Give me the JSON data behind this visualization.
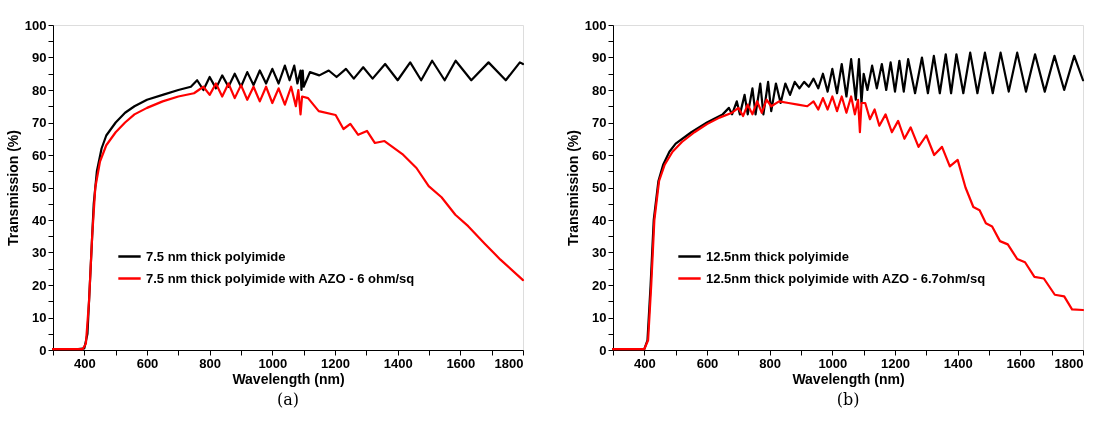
{
  "chart_data": [
    {
      "type": "line",
      "xlabel": "Wavelength (nm)",
      "ylabel": "Transmission (%)",
      "annotations": [
        "(a)"
      ],
      "legend": "bottom left",
      "grid": false,
      "line_style": "solid",
      "xlim": [
        300,
        1800
      ],
      "xticks": [
        {
          "value": 300,
          "label": null
        },
        400,
        {
          "value": 500,
          "label": null
        },
        600,
        {
          "value": 700,
          "label": null
        },
        800,
        {
          "value": 900,
          "label": null
        },
        1000,
        {
          "value": 1100,
          "label": null
        },
        1200,
        {
          "value": 1300,
          "label": null
        },
        1400,
        {
          "value": 1500,
          "label": null
        },
        1600,
        {
          "value": 1700,
          "label": null
        },
        1800
      ],
      "ylim": [
        0,
        100
      ],
      "yticks": [
        0,
        {
          "value": 5,
          "label": null
        },
        10,
        {
          "value": 15,
          "label": null
        },
        20,
        {
          "value": 25,
          "label": null
        },
        30,
        {
          "value": 35,
          "label": null
        },
        40,
        {
          "value": 45,
          "label": null
        },
        50,
        {
          "value": 55,
          "label": null
        },
        60,
        {
          "value": 65,
          "label": null
        },
        70,
        {
          "value": 75,
          "label": null
        },
        80,
        {
          "value": 85,
          "label": null
        },
        90,
        {
          "value": 95,
          "label": null
        },
        100
      ],
      "series": [
        {
          "name": "7.5 nm thick polyimide",
          "color": "#000000",
          "x": [
            300,
            380,
            400,
            410,
            420,
            430,
            440,
            455,
            470,
            500,
            530,
            560,
            600,
            650,
            700,
            740,
            760,
            780,
            800,
            820,
            840,
            860,
            880,
            900,
            920,
            940,
            960,
            980,
            1000,
            1020,
            1040,
            1055,
            1070,
            1080,
            1090,
            1093,
            1097,
            1100,
            1120,
            1150,
            1180,
            1205,
            1235,
            1260,
            1290,
            1320,
            1360,
            1400,
            1440,
            1475,
            1510,
            1550,
            1585,
            1635,
            1690,
            1745,
            1790,
            1800
          ],
          "values": [
            0.3,
            0.3,
            0.5,
            5,
            25,
            45,
            55,
            62,
            66,
            70,
            73,
            75,
            77,
            78.5,
            80,
            81,
            83,
            80,
            84,
            80.5,
            84.5,
            81,
            85,
            81,
            85.5,
            81.5,
            86,
            82,
            86.5,
            82,
            87.5,
            83,
            87.5,
            82,
            86,
            80,
            86,
            81,
            85.5,
            84.5,
            86,
            84,
            86.5,
            83.5,
            87,
            83.5,
            88,
            83,
            88.5,
            83,
            89,
            83,
            89,
            83,
            88.5,
            83,
            88.5,
            88
          ]
        },
        {
          "name": "7.5 nm thick polyimide with AZO - 6 ohm/sq",
          "color": "#ff0000",
          "x": [
            300,
            395,
            405,
            415,
            425,
            435,
            450,
            470,
            500,
            530,
            560,
            600,
            650,
            700,
            750,
            780,
            800,
            820,
            840,
            860,
            880,
            900,
            920,
            940,
            960,
            980,
            1000,
            1020,
            1040,
            1060,
            1075,
            1083,
            1090,
            1095,
            1114,
            1148,
            1202,
            1227,
            1249,
            1274,
            1302,
            1327,
            1358,
            1415,
            1460,
            1499,
            1540,
            1584,
            1625,
            1678,
            1728,
            1800
          ],
          "values": [
            0.3,
            0.3,
            2,
            15,
            35,
            50,
            58,
            63,
            67,
            70,
            72.5,
            74.5,
            76.5,
            78,
            79,
            81,
            78.5,
            82,
            78,
            82,
            77.5,
            81.5,
            77,
            81,
            76.5,
            81,
            76,
            80.5,
            75.5,
            81,
            75,
            80,
            72.5,
            78,
            77.5,
            73.5,
            72.3,
            68,
            69.6,
            66.2,
            67.4,
            63.7,
            64.3,
            60.3,
            56,
            50.4,
            47,
            41.6,
            38.1,
            32.7,
            27.8,
            21.5
          ]
        }
      ]
    },
    {
      "type": "line",
      "xlabel": "Wavelength (nm)",
      "ylabel": "Transmission (%)",
      "annotations": [
        "(b)"
      ],
      "legend": "bottom left",
      "grid": false,
      "line_style": "solid",
      "xlim": [
        300,
        1800
      ],
      "xticks": [
        {
          "value": 300,
          "label": null
        },
        400,
        {
          "value": 500,
          "label": null
        },
        600,
        {
          "value": 700,
          "label": null
        },
        800,
        {
          "value": 900,
          "label": null
        },
        1000,
        {
          "value": 1100,
          "label": null
        },
        1200,
        {
          "value": 1300,
          "label": null
        },
        1400,
        {
          "value": 1500,
          "label": null
        },
        1600,
        {
          "value": 1700,
          "label": null
        },
        1800
      ],
      "ylim": [
        0,
        100
      ],
      "yticks": [
        0,
        {
          "value": 5,
          "label": null
        },
        10,
        {
          "value": 15,
          "label": null
        },
        20,
        {
          "value": 25,
          "label": null
        },
        30,
        {
          "value": 35,
          "label": null
        },
        40,
        {
          "value": 45,
          "label": null
        },
        50,
        {
          "value": 55,
          "label": null
        },
        60,
        {
          "value": 65,
          "label": null
        },
        70,
        {
          "value": 75,
          "label": null
        },
        80,
        {
          "value": 85,
          "label": null
        },
        90,
        {
          "value": 95,
          "label": null
        },
        100
      ],
      "series": [
        {
          "name": "12.5nm thick polyimide",
          "color": "#000000",
          "x": [
            300,
            400,
            410,
            420,
            430,
            445,
            460,
            480,
            500,
            550,
            600,
            620,
            650,
            670,
            680,
            695,
            705,
            720,
            730,
            745,
            755,
            770,
            780,
            795,
            805,
            820,
            835,
            850,
            865,
            880,
            895,
            910,
            925,
            940,
            955,
            970,
            985,
            1000,
            1015,
            1030,
            1045,
            1060,
            1075,
            1085,
            1093,
            1100,
            1112,
            1127,
            1142,
            1158,
            1172,
            1186,
            1200,
            1214,
            1228,
            1242,
            1264,
            1286,
            1305,
            1324,
            1343,
            1362,
            1379,
            1396,
            1418,
            1440,
            1463,
            1487,
            1512,
            1537,
            1563,
            1590,
            1618,
            1647,
            1678,
            1709,
            1740,
            1772,
            1800
          ],
          "values": [
            0.3,
            0.3,
            3,
            20,
            40,
            52,
            57,
            61,
            63.5,
            67,
            70,
            71,
            72.5,
            74.5,
            72.5,
            76.5,
            72.5,
            78.5,
            72.5,
            80.5,
            72.5,
            82,
            72.5,
            82.5,
            73.5,
            82,
            76,
            82,
            78.5,
            82.5,
            80.5,
            82.5,
            81,
            83.5,
            80.5,
            85,
            79.5,
            86.5,
            79,
            88,
            78,
            89.5,
            77,
            89.5,
            76,
            85,
            80,
            87.5,
            80.5,
            88,
            80,
            88.5,
            79.5,
            89,
            79.5,
            89.5,
            79,
            90,
            79,
            90.5,
            79,
            91,
            79,
            91,
            79,
            91.5,
            79,
            91.5,
            79,
            91.5,
            79.5,
            91.5,
            79.5,
            91,
            79.5,
            90.5,
            80,
            90.5,
            83
          ]
        },
        {
          "name": "12.5nm thick polyimide with AZO - 6.7ohm/sq",
          "color": "#ff0000",
          "x": [
            300,
            400,
            412,
            422,
            432,
            447,
            465,
            490,
            520,
            560,
            600,
            640,
            680,
            700,
            715,
            730,
            745,
            760,
            775,
            790,
            805,
            830,
            860,
            890,
            920,
            940,
            955,
            970,
            985,
            1000,
            1015,
            1030,
            1045,
            1060,
            1072,
            1082,
            1088,
            1093,
            1105,
            1120,
            1135,
            1150,
            1170,
            1190,
            1210,
            1230,
            1250,
            1275,
            1300,
            1325,
            1350,
            1375,
            1400,
            1425,
            1450,
            1470,
            1490,
            1510,
            1535,
            1560,
            1590,
            1615,
            1645,
            1675,
            1710,
            1740,
            1765,
            1800
          ],
          "values": [
            0.3,
            0.3,
            3,
            20,
            40,
            52,
            57,
            61,
            64,
            67,
            69.5,
            71.5,
            73,
            74.5,
            72,
            75.5,
            72.5,
            76.5,
            73,
            77,
            75,
            76.5,
            76,
            75.5,
            75,
            76.5,
            74,
            77.5,
            74,
            78,
            73.5,
            78,
            73,
            78,
            72.5,
            77,
            67,
            76,
            76,
            71,
            74,
            69,
            72.5,
            67,
            70.5,
            65,
            68.5,
            62.5,
            66,
            60,
            62.5,
            56.5,
            58.5,
            50,
            44,
            43,
            39,
            38,
            33.5,
            32.5,
            28,
            27,
            22.5,
            22,
            17,
            16.5,
            12.5,
            12.3
          ]
        }
      ]
    }
  ]
}
